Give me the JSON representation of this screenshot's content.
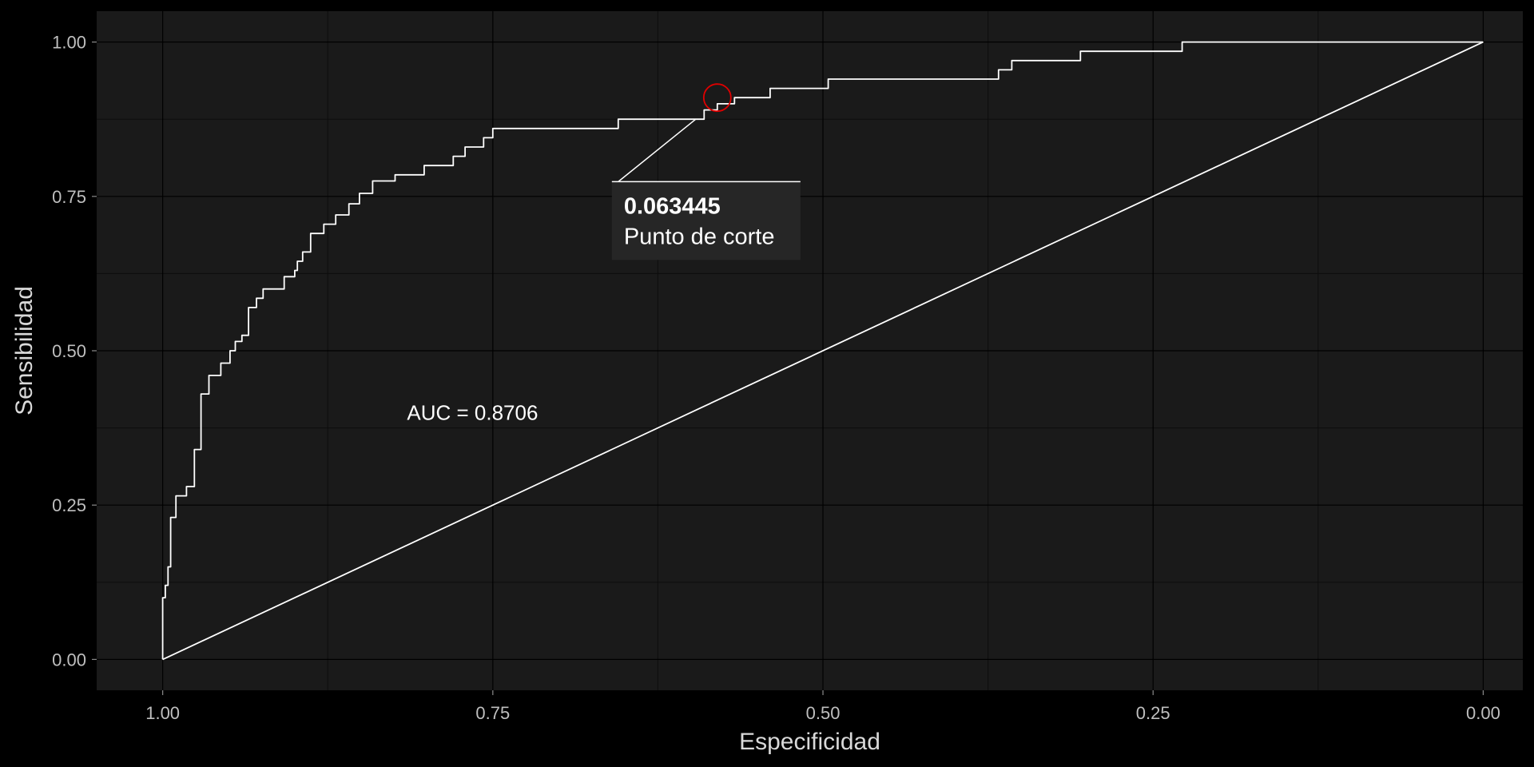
{
  "colors": {
    "background": "#000000",
    "panel": "#1A1A1A",
    "grid_major": "#000000",
    "grid_minor": "#0D0D0D",
    "line": "#FFFFFF",
    "marker": "#E00000",
    "label_box": "#262626"
  },
  "chart_data": {
    "type": "line",
    "xlabel": "Especificidad",
    "ylabel": "Sensibilidad",
    "xlim": [
      1.05,
      -0.03
    ],
    "ylim": [
      -0.05,
      1.05
    ],
    "x_reversed": true,
    "x_ticks": [
      1.0,
      0.75,
      0.5,
      0.25,
      0.0
    ],
    "x_tick_labels": [
      "1.00",
      "0.75",
      "0.50",
      "0.25",
      "0.00"
    ],
    "y_ticks": [
      0.0,
      0.25,
      0.5,
      0.75,
      1.0
    ],
    "y_tick_labels": [
      "0.00",
      "0.25",
      "0.50",
      "0.75",
      "1.00"
    ],
    "grid": true,
    "series": [
      {
        "role": "roc-curve",
        "specificity": [
          1.0,
          1.0,
          0.998,
          0.998,
          0.996,
          0.996,
          0.994,
          0.994,
          0.99,
          0.99,
          0.982,
          0.982,
          0.976,
          0.976,
          0.971,
          0.971,
          0.965,
          0.965,
          0.956,
          0.956,
          0.949,
          0.949,
          0.945,
          0.945,
          0.94,
          0.94,
          0.935,
          0.935,
          0.929,
          0.929,
          0.924,
          0.924,
          0.908,
          0.908,
          0.9,
          0.9,
          0.898,
          0.898,
          0.894,
          0.894,
          0.888,
          0.888,
          0.878,
          0.878,
          0.869,
          0.869,
          0.859,
          0.859,
          0.851,
          0.851,
          0.841,
          0.841,
          0.824,
          0.824,
          0.802,
          0.802,
          0.78,
          0.78,
          0.771,
          0.771,
          0.757,
          0.757,
          0.75,
          0.75,
          0.655,
          0.655,
          0.59,
          0.59,
          0.58,
          0.58,
          0.567,
          0.567,
          0.54,
          0.54,
          0.496,
          0.496,
          0.367,
          0.367,
          0.357,
          0.357,
          0.305,
          0.305,
          0.228,
          0.228,
          0.0
        ],
        "sensitivity": [
          0.0,
          0.1,
          0.1,
          0.12,
          0.12,
          0.15,
          0.15,
          0.23,
          0.23,
          0.265,
          0.265,
          0.28,
          0.28,
          0.34,
          0.34,
          0.43,
          0.43,
          0.46,
          0.46,
          0.48,
          0.48,
          0.5,
          0.5,
          0.515,
          0.515,
          0.525,
          0.525,
          0.57,
          0.57,
          0.585,
          0.585,
          0.6,
          0.6,
          0.62,
          0.62,
          0.63,
          0.63,
          0.645,
          0.645,
          0.66,
          0.66,
          0.69,
          0.69,
          0.705,
          0.705,
          0.72,
          0.72,
          0.738,
          0.738,
          0.755,
          0.755,
          0.775,
          0.775,
          0.785,
          0.785,
          0.8,
          0.8,
          0.815,
          0.815,
          0.83,
          0.83,
          0.845,
          0.845,
          0.86,
          0.86,
          0.875,
          0.875,
          0.89,
          0.89,
          0.9,
          0.9,
          0.91,
          0.91,
          0.925,
          0.925,
          0.94,
          0.94,
          0.955,
          0.955,
          0.97,
          0.97,
          0.985,
          0.985,
          1.0,
          1.0
        ]
      },
      {
        "role": "reference-diagonal",
        "specificity": [
          1.0,
          0.0
        ],
        "sensitivity": [
          0.0,
          1.0
        ]
      }
    ],
    "annotations": {
      "auc_text": "AUC = 0.8706",
      "auc_position": {
        "specificity": 0.815,
        "sensitivity": 0.4
      },
      "cutoff_point": {
        "specificity": 0.58,
        "sensitivity": 0.91
      },
      "cutoff_value": "0.063445",
      "cutoff_caption": "Punto de corte",
      "cutoff_label_anchor": {
        "specificity": 0.655,
        "sensitivity": 0.77
      }
    }
  }
}
